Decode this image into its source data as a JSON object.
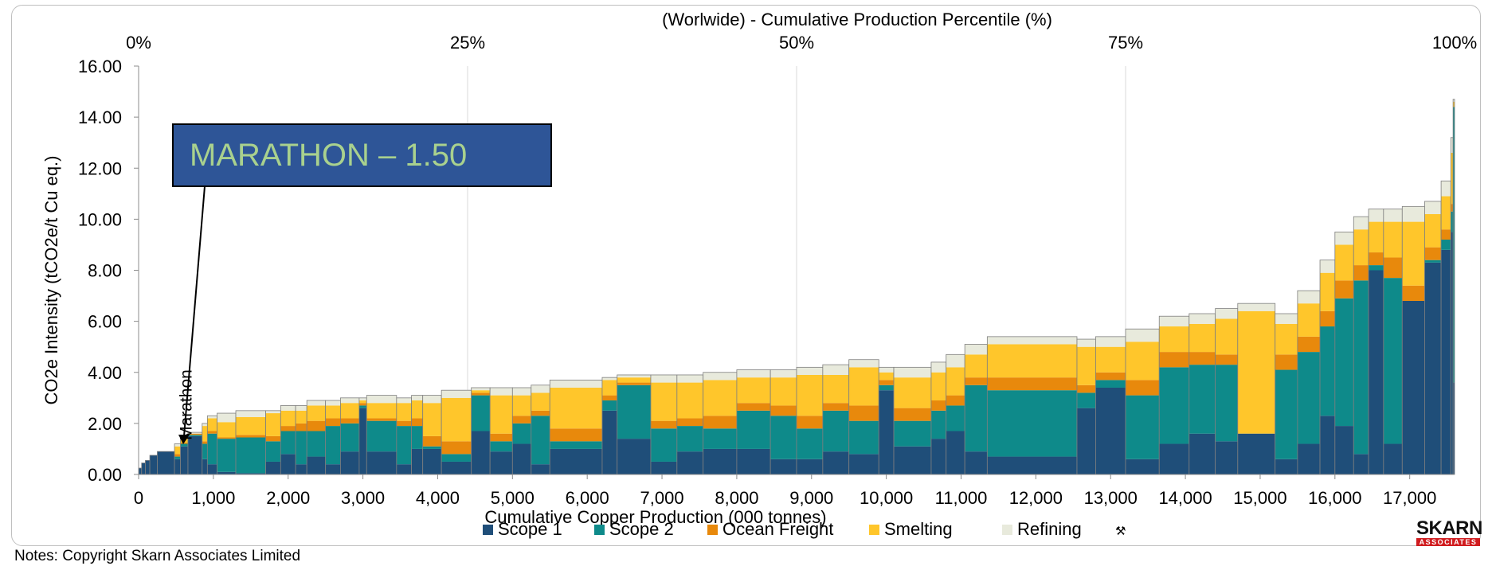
{
  "chart_data": {
    "type": "bar",
    "subtype": "variable-width stacked cost curve",
    "top_axis_title": "(Worlwide) - Cumulative Production Percentile (%)",
    "top_ticks": [
      "0%",
      "25%",
      "50%",
      "75%",
      "100%"
    ],
    "xlabel": "Cumulative Copper Production (000 tonnes)",
    "ylabel": "CO2e Intensity  (tCO2e/t Cu eq.)",
    "xlim": [
      0,
      17600
    ],
    "ylim": [
      0,
      16
    ],
    "x_ticks": [
      "0",
      "1,000",
      "2,000",
      "3,000",
      "4,000",
      "5,000",
      "6,000",
      "7,000",
      "8,000",
      "9,000",
      "10,000",
      "11,000",
      "12,000",
      "13,000",
      "14,000",
      "15,000",
      "16,000",
      "17,000"
    ],
    "y_ticks": [
      "0.00",
      "2.00",
      "4.00",
      "6.00",
      "8.00",
      "10.00",
      "12.00",
      "14.00",
      "16.00"
    ],
    "grid": "vertical at percentile ticks",
    "legend_position": "bottom",
    "series": [
      {
        "name": "Scope 1",
        "color": "#1f4e79"
      },
      {
        "name": "Scope 2",
        "color": "#0e8a8a"
      },
      {
        "name": "Ocean Freight",
        "color": "#e8890c"
      },
      {
        "name": "Smelting",
        "color": "#ffc62b"
      },
      {
        "name": "Refining",
        "color": "#e8eadc"
      }
    ],
    "legend_symbol": "⚒",
    "bars": [
      {
        "x0": 0,
        "x1": 40,
        "s1": 0.25,
        "s2": 0,
        "of": 0,
        "sm": 0,
        "rf": 0
      },
      {
        "x0": 40,
        "x1": 90,
        "s1": 0.45,
        "s2": 0,
        "of": 0,
        "sm": 0,
        "rf": 0
      },
      {
        "x0": 90,
        "x1": 150,
        "s1": 0.55,
        "s2": 0,
        "of": 0,
        "sm": 0,
        "rf": 0
      },
      {
        "x0": 150,
        "x1": 250,
        "s1": 0.75,
        "s2": 0,
        "of": 0,
        "sm": 0,
        "rf": 0
      },
      {
        "x0": 250,
        "x1": 480,
        "s1": 0.9,
        "s2": 0,
        "of": 0,
        "sm": 0,
        "rf": 0
      },
      {
        "x0": 480,
        "x1": 560,
        "s1": 0.6,
        "s2": 0.1,
        "of": 0.1,
        "sm": 0.3,
        "rf": 0.1
      },
      {
        "x0": 560,
        "x1": 660,
        "s1": 1.1,
        "s2": 0.1,
        "of": 0.05,
        "sm": 0.2,
        "rf": 0.05
      },
      {
        "x0": 660,
        "x1": 850,
        "s1": 1.5,
        "s2": 0.05,
        "of": 0.05,
        "sm": 0,
        "rf": 0.05
      },
      {
        "x0": 850,
        "x1": 920,
        "s1": 0.6,
        "s2": 0.6,
        "of": 0.1,
        "sm": 0.6,
        "rf": 0.1
      },
      {
        "x0": 920,
        "x1": 1050,
        "s1": 0.4,
        "s2": 1.2,
        "of": 0.1,
        "sm": 0.5,
        "rf": 0.1
      },
      {
        "x0": 1050,
        "x1": 1300,
        "s1": 0.1,
        "s2": 1.3,
        "of": 0.05,
        "sm": 0.6,
        "rf": 0.35
      },
      {
        "x0": 1300,
        "x1": 1700,
        "s1": 0.05,
        "s2": 1.4,
        "of": 0.1,
        "sm": 0.7,
        "rf": 0.25
      },
      {
        "x0": 1700,
        "x1": 1900,
        "s1": 0.5,
        "s2": 0.8,
        "of": 0.2,
        "sm": 0.9,
        "rf": 0.1
      },
      {
        "x0": 1900,
        "x1": 2100,
        "s1": 0.8,
        "s2": 0.9,
        "of": 0.2,
        "sm": 0.6,
        "rf": 0.2
      },
      {
        "x0": 2100,
        "x1": 2250,
        "s1": 0.4,
        "s2": 1.3,
        "of": 0.3,
        "sm": 0.5,
        "rf": 0.2
      },
      {
        "x0": 2250,
        "x1": 2500,
        "s1": 0.7,
        "s2": 1.0,
        "of": 0.4,
        "sm": 0.6,
        "rf": 0.2
      },
      {
        "x0": 2500,
        "x1": 2700,
        "s1": 0.4,
        "s2": 1.5,
        "of": 0.3,
        "sm": 0.5,
        "rf": 0.2
      },
      {
        "x0": 2700,
        "x1": 2950,
        "s1": 0.9,
        "s2": 1.1,
        "of": 0.2,
        "sm": 0.6,
        "rf": 0.2
      },
      {
        "x0": 2950,
        "x1": 3050,
        "s1": 2.6,
        "s2": 0.1,
        "of": 0.1,
        "sm": 0.1,
        "rf": 0.1
      },
      {
        "x0": 3050,
        "x1": 3450,
        "s1": 0.9,
        "s2": 1.2,
        "of": 0.1,
        "sm": 0.6,
        "rf": 0.3
      },
      {
        "x0": 3450,
        "x1": 3650,
        "s1": 0.4,
        "s2": 1.5,
        "of": 0.2,
        "sm": 0.7,
        "rf": 0.2
      },
      {
        "x0": 3650,
        "x1": 3800,
        "s1": 1.0,
        "s2": 0.9,
        "of": 0.3,
        "sm": 0.7,
        "rf": 0.2
      },
      {
        "x0": 3800,
        "x1": 4050,
        "s1": 1.0,
        "s2": 0.1,
        "of": 0.4,
        "sm": 1.3,
        "rf": 0.3
      },
      {
        "x0": 4050,
        "x1": 4450,
        "s1": 0.5,
        "s2": 0.3,
        "of": 0.5,
        "sm": 1.7,
        "rf": 0.3
      },
      {
        "x0": 4450,
        "x1": 4700,
        "s1": 1.7,
        "s2": 1.4,
        "of": 0.1,
        "sm": 0.1,
        "rf": 0.1
      },
      {
        "x0": 4700,
        "x1": 5000,
        "s1": 0.9,
        "s2": 0.4,
        "of": 0.3,
        "sm": 1.5,
        "rf": 0.3
      },
      {
        "x0": 5000,
        "x1": 5250,
        "s1": 1.2,
        "s2": 0.8,
        "of": 0.3,
        "sm": 0.8,
        "rf": 0.3
      },
      {
        "x0": 5250,
        "x1": 5500,
        "s1": 0.4,
        "s2": 1.9,
        "of": 0.2,
        "sm": 0.7,
        "rf": 0.3
      },
      {
        "x0": 5500,
        "x1": 6200,
        "s1": 1.0,
        "s2": 0.3,
        "of": 0.5,
        "sm": 1.6,
        "rf": 0.3
      },
      {
        "x0": 6200,
        "x1": 6400,
        "s1": 2.5,
        "s2": 0.4,
        "of": 0.2,
        "sm": 0.6,
        "rf": 0.1
      },
      {
        "x0": 6400,
        "x1": 6850,
        "s1": 1.4,
        "s2": 2.1,
        "of": 0.1,
        "sm": 0.2,
        "rf": 0.1
      },
      {
        "x0": 6850,
        "x1": 7200,
        "s1": 0.5,
        "s2": 1.3,
        "of": 0.3,
        "sm": 1.5,
        "rf": 0.3
      },
      {
        "x0": 7200,
        "x1": 7550,
        "s1": 0.9,
        "s2": 1.0,
        "of": 0.3,
        "sm": 1.4,
        "rf": 0.3
      },
      {
        "x0": 7550,
        "x1": 8000,
        "s1": 1.0,
        "s2": 0.8,
        "of": 0.5,
        "sm": 1.4,
        "rf": 0.3
      },
      {
        "x0": 8000,
        "x1": 8450,
        "s1": 1.0,
        "s2": 1.5,
        "of": 0.3,
        "sm": 1.0,
        "rf": 0.3
      },
      {
        "x0": 8450,
        "x1": 8800,
        "s1": 0.6,
        "s2": 1.7,
        "of": 0.4,
        "sm": 1.1,
        "rf": 0.3
      },
      {
        "x0": 8800,
        "x1": 9150,
        "s1": 0.6,
        "s2": 1.2,
        "of": 0.5,
        "sm": 1.6,
        "rf": 0.3
      },
      {
        "x0": 9150,
        "x1": 9500,
        "s1": 0.9,
        "s2": 1.6,
        "of": 0.3,
        "sm": 1.1,
        "rf": 0.4
      },
      {
        "x0": 9500,
        "x1": 9900,
        "s1": 0.8,
        "s2": 1.3,
        "of": 0.6,
        "sm": 1.5,
        "rf": 0.3
      },
      {
        "x0": 9900,
        "x1": 10100,
        "s1": 3.3,
        "s2": 0.2,
        "of": 0.2,
        "sm": 0.3,
        "rf": 0.2
      },
      {
        "x0": 10100,
        "x1": 10600,
        "s1": 1.1,
        "s2": 1.0,
        "of": 0.5,
        "sm": 1.2,
        "rf": 0.4
      },
      {
        "x0": 10600,
        "x1": 10800,
        "s1": 1.4,
        "s2": 1.1,
        "of": 0.4,
        "sm": 1.1,
        "rf": 0.4
      },
      {
        "x0": 10800,
        "x1": 11050,
        "s1": 1.7,
        "s2": 1.0,
        "of": 0.4,
        "sm": 1.1,
        "rf": 0.5
      },
      {
        "x0": 11050,
        "x1": 11350,
        "s1": 0.9,
        "s2": 2.6,
        "of": 0.3,
        "sm": 0.9,
        "rf": 0.4
      },
      {
        "x0": 11350,
        "x1": 12550,
        "s1": 0.7,
        "s2": 2.6,
        "of": 0.5,
        "sm": 1.3,
        "rf": 0.3
      },
      {
        "x0": 12550,
        "x1": 12800,
        "s1": 2.6,
        "s2": 0.6,
        "of": 0.3,
        "sm": 1.5,
        "rf": 0.3
      },
      {
        "x0": 12800,
        "x1": 13200,
        "s1": 3.4,
        "s2": 0.3,
        "of": 0.3,
        "sm": 1.0,
        "rf": 0.4
      },
      {
        "x0": 13200,
        "x1": 13650,
        "s1": 0.6,
        "s2": 2.5,
        "of": 0.6,
        "sm": 1.5,
        "rf": 0.5
      },
      {
        "x0": 13650,
        "x1": 14050,
        "s1": 1.2,
        "s2": 3.0,
        "of": 0.6,
        "sm": 1.0,
        "rf": 0.4
      },
      {
        "x0": 14050,
        "x1": 14400,
        "s1": 1.6,
        "s2": 2.7,
        "of": 0.5,
        "sm": 1.1,
        "rf": 0.4
      },
      {
        "x0": 14400,
        "x1": 14700,
        "s1": 1.3,
        "s2": 3.0,
        "of": 0.4,
        "sm": 1.4,
        "rf": 0.4
      },
      {
        "x0": 14700,
        "x1": 15200,
        "s1": 1.6,
        "s2": 0.0,
        "of": 0.0,
        "sm": 4.8,
        "rf": 0.3
      },
      {
        "x0": 15200,
        "x1": 15500,
        "s1": 0.6,
        "s2": 3.5,
        "of": 0.6,
        "sm": 1.2,
        "rf": 0.4
      },
      {
        "x0": 15500,
        "x1": 15800,
        "s1": 1.2,
        "s2": 3.6,
        "of": 0.6,
        "sm": 1.3,
        "rf": 0.5
      },
      {
        "x0": 15800,
        "x1": 16000,
        "s1": 2.3,
        "s2": 3.5,
        "of": 0.6,
        "sm": 1.5,
        "rf": 0.5
      },
      {
        "x0": 16000,
        "x1": 16250,
        "s1": 1.9,
        "s2": 5.0,
        "of": 0.7,
        "sm": 1.4,
        "rf": 0.5
      },
      {
        "x0": 16250,
        "x1": 16450,
        "s1": 0.8,
        "s2": 6.8,
        "of": 0.6,
        "sm": 1.4,
        "rf": 0.5
      },
      {
        "x0": 16450,
        "x1": 16650,
        "s1": 8.0,
        "s2": 0.2,
        "of": 0.5,
        "sm": 1.2,
        "rf": 0.5
      },
      {
        "x0": 16650,
        "x1": 16900,
        "s1": 1.2,
        "s2": 6.5,
        "of": 0.8,
        "sm": 1.4,
        "rf": 0.5
      },
      {
        "x0": 16900,
        "x1": 17200,
        "s1": 6.8,
        "s2": 0.0,
        "of": 0.6,
        "sm": 2.5,
        "rf": 0.6
      },
      {
        "x0": 17200,
        "x1": 17420,
        "s1": 8.3,
        "s2": 0.1,
        "of": 0.5,
        "sm": 1.3,
        "rf": 0.5
      },
      {
        "x0": 17420,
        "x1": 17550,
        "s1": 8.8,
        "s2": 0.4,
        "of": 0.4,
        "sm": 1.3,
        "rf": 0.6
      },
      {
        "x0": 17550,
        "x1": 17580,
        "s1": 9.5,
        "s2": 0.8,
        "of": 0.3,
        "sm": 2.0,
        "rf": 0.6
      },
      {
        "x0": 17580,
        "x1": 17600,
        "s1": 3.6,
        "s2": 10.8,
        "of": 0.0,
        "sm": 0.2,
        "rf": 0.1
      }
    ],
    "highlight": {
      "label": "Marathon",
      "x": 560,
      "value": 1.5
    },
    "callout_text": "MARATHON – 1.50"
  },
  "notes": "Notes: Copyright Skarn Associates Limited",
  "logo": {
    "top": "SKARN",
    "bottom": "ASSOCIATES"
  }
}
